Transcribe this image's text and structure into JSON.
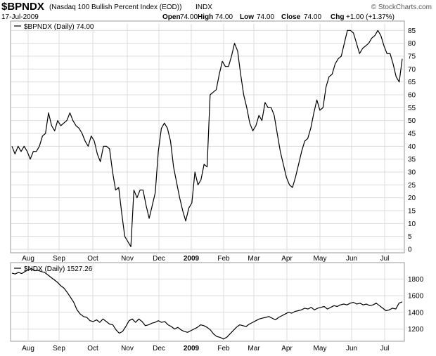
{
  "header": {
    "symbol": "$BPNDX",
    "description": "(Nasdaq 100 Bullish Percent Index (EOD))",
    "exchange": "INDX",
    "watermark": "© StockCharts.com",
    "date": "17-Jul-2009",
    "quote": {
      "open_label": "Open",
      "open_value": "74.00",
      "high_label": "High",
      "high_value": "74.00",
      "low_label": "Low",
      "low_value": "74.00",
      "close_label": "Close",
      "close_value": "74.00",
      "chg_label": "Chg",
      "chg_value": "+1.00 (+1.37%)"
    }
  },
  "chart_data": [
    {
      "type": "line",
      "legend": "$BPNDX (Daily) 74.00",
      "ylim": [
        0,
        87
      ],
      "yticks": [
        0,
        5,
        10,
        15,
        20,
        25,
        30,
        35,
        40,
        45,
        50,
        55,
        60,
        65,
        70,
        75,
        80,
        85
      ],
      "xticks": [
        "Aug",
        "Sep",
        "Oct",
        "Nov",
        "Dec",
        "2009",
        "Feb",
        "Mar",
        "Apr",
        "May",
        "Jun",
        "Jul"
      ],
      "grid": true,
      "series": [
        {
          "values": [
            40,
            37,
            40,
            38,
            40,
            38,
            35,
            38,
            38,
            40,
            44,
            45,
            53,
            48,
            46,
            50,
            48,
            49,
            50,
            53,
            50,
            48,
            47,
            45,
            42,
            40,
            44,
            42,
            37,
            34,
            40,
            40,
            39,
            30,
            23,
            24,
            14,
            5,
            3,
            1,
            23,
            20,
            23,
            23,
            17,
            12,
            17,
            22,
            38,
            47,
            49,
            47,
            42,
            32,
            26,
            20,
            15,
            11,
            16,
            18,
            30,
            25,
            27,
            33,
            32,
            60,
            61,
            62,
            68,
            73,
            71,
            71,
            75,
            80,
            77,
            68,
            60,
            55,
            49,
            46,
            48,
            52,
            50,
            57,
            55,
            55,
            52,
            45,
            38,
            33,
            28,
            25,
            24,
            28,
            33,
            38,
            42,
            43,
            47,
            53,
            58,
            54,
            55,
            63,
            67,
            68,
            72,
            74,
            75,
            80,
            85,
            85,
            84,
            80,
            76,
            78,
            79,
            80,
            82,
            83,
            85,
            83,
            79,
            76,
            76,
            72,
            67,
            65,
            74
          ]
        }
      ]
    },
    {
      "type": "line",
      "legend": "$NDX (Daily) 1527.26",
      "ylim": [
        1070,
        1980
      ],
      "yticks": [
        1200,
        1400,
        1600,
        1800
      ],
      "xticks": [
        "Aug",
        "Sep",
        "Oct",
        "Nov",
        "Dec",
        "2009",
        "Feb",
        "Mar",
        "Apr",
        "May",
        "Jun",
        "Jul"
      ],
      "grid": true,
      "series": [
        {
          "values": [
            1870,
            1860,
            1880,
            1865,
            1890,
            1910,
            1925,
            1900,
            1905,
            1890,
            1880,
            1850,
            1820,
            1790,
            1760,
            1720,
            1690,
            1640,
            1580,
            1520,
            1430,
            1380,
            1350,
            1340,
            1300,
            1290,
            1310,
            1280,
            1320,
            1290,
            1260,
            1250,
            1190,
            1150,
            1170,
            1230,
            1300,
            1320,
            1280,
            1320,
            1290,
            1240,
            1250,
            1270,
            1280,
            1300,
            1280,
            1290,
            1250,
            1230,
            1200,
            1220,
            1190,
            1170,
            1160,
            1180,
            1200,
            1220,
            1250,
            1240,
            1220,
            1190,
            1140,
            1110,
            1100,
            1080,
            1100,
            1140,
            1180,
            1220,
            1250,
            1240,
            1230,
            1260,
            1280,
            1300,
            1320,
            1330,
            1340,
            1350,
            1330,
            1310,
            1340,
            1360,
            1380,
            1400,
            1390,
            1410,
            1420,
            1430,
            1450,
            1440,
            1460,
            1430,
            1450,
            1460,
            1470,
            1440,
            1460,
            1480,
            1470,
            1490,
            1500,
            1490,
            1510,
            1520,
            1500,
            1510,
            1490,
            1500,
            1480,
            1490,
            1510,
            1480,
            1450,
            1420,
            1430,
            1450,
            1440,
            1510,
            1527
          ]
        }
      ]
    }
  ]
}
